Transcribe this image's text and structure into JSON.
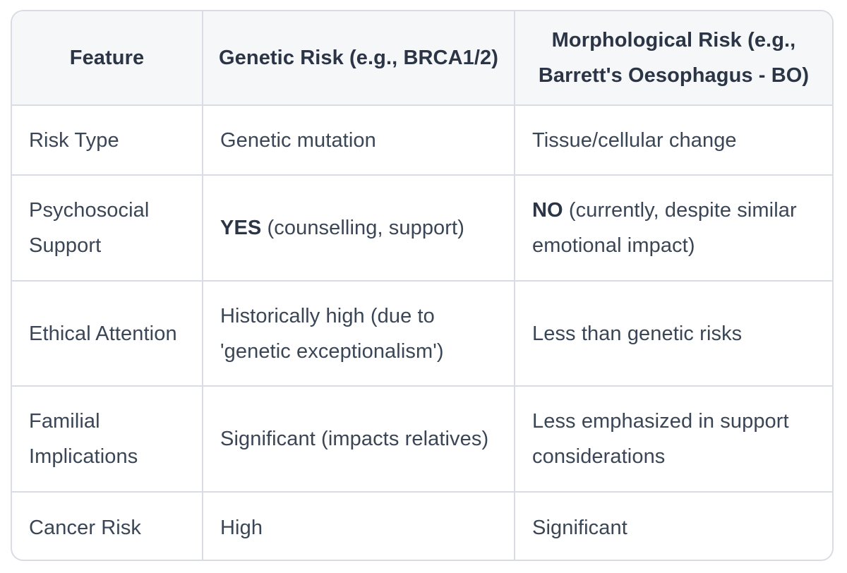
{
  "header": {
    "feature": "Feature",
    "genetic": "Genetic Risk (e.g., BRCA1/2)",
    "morphological": "Morphological Risk (e.g., Barrett's Oesophagus - BO)"
  },
  "rows": [
    {
      "feature": "Risk Type",
      "genetic": "Genetic mutation",
      "morphological": "Tissue/cellular change"
    },
    {
      "feature": "Psychosocial Support",
      "genetic_strong": "YES",
      "genetic": " (counselling, support)",
      "morphological_strong": "NO",
      "morphological": " (currently, despite similar emotional impact)"
    },
    {
      "feature": "Ethical Attention",
      "genetic": "Historically high (due to 'genetic exceptionalism')",
      "morphological": "Less than genetic risks"
    },
    {
      "feature": "Familial Implications",
      "genetic": "Significant (impacts relatives)",
      "morphological": "Less emphasized in support considerations"
    },
    {
      "feature": "Cancer Risk",
      "genetic": "High",
      "morphological": "Significant"
    }
  ]
}
